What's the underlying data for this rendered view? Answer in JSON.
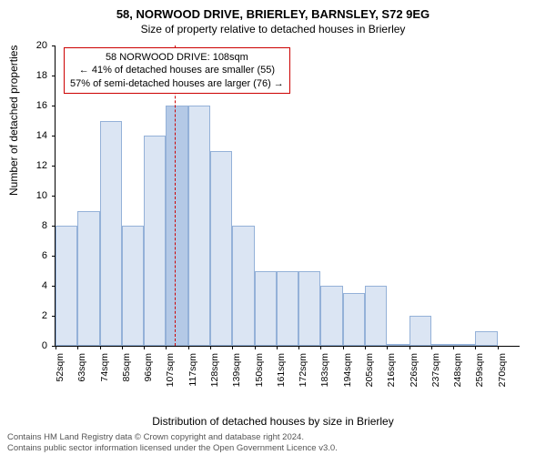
{
  "title_main": "58, NORWOOD DRIVE, BRIERLEY, BARNSLEY, S72 9EG",
  "title_sub": "Size of property relative to detached houses in Brierley",
  "ylabel": "Number of detached properties",
  "xlabel": "Distribution of detached houses by size in Brierley",
  "callout": {
    "line1": "58 NORWOOD DRIVE: 108sqm",
    "line2": "← 41% of detached houses are smaller (55)",
    "line3": "57% of semi-detached houses are larger (76) →"
  },
  "chart": {
    "type": "histogram",
    "ylim": [
      0,
      20
    ],
    "ytick_step": 2,
    "xlim": [
      52,
      270
    ],
    "categories": [
      "52sqm",
      "63sqm",
      "74sqm",
      "85sqm",
      "96sqm",
      "107sqm",
      "117sqm",
      "128sqm",
      "139sqm",
      "150sqm",
      "161sqm",
      "172sqm",
      "183sqm",
      "194sqm",
      "205sqm",
      "216sqm",
      "226sqm",
      "237sqm",
      "248sqm",
      "259sqm",
      "270sqm"
    ],
    "values": [
      8,
      9,
      15,
      8,
      14,
      16,
      16,
      13,
      8,
      5,
      5,
      5,
      4,
      3.5,
      4,
      0,
      2,
      0,
      0,
      1
    ],
    "bar_fill": "#dbe5f3",
    "bar_border": "#94b1d8",
    "highlight_index": 5,
    "highlight_fill": "#b4c9e6",
    "ref_x": 108,
    "ref_color": "#cc0000",
    "background_color": "#ffffff",
    "title_fontsize": 13,
    "subtitle_fontsize": 12,
    "axis_label_fontsize": 12,
    "tick_fontsize": 11,
    "bar_width": 1.0
  },
  "caption_line1": "Contains HM Land Registry data © Crown copyright and database right 2024.",
  "caption_line2": "Contains public sector information licensed under the Open Government Licence v3.0."
}
